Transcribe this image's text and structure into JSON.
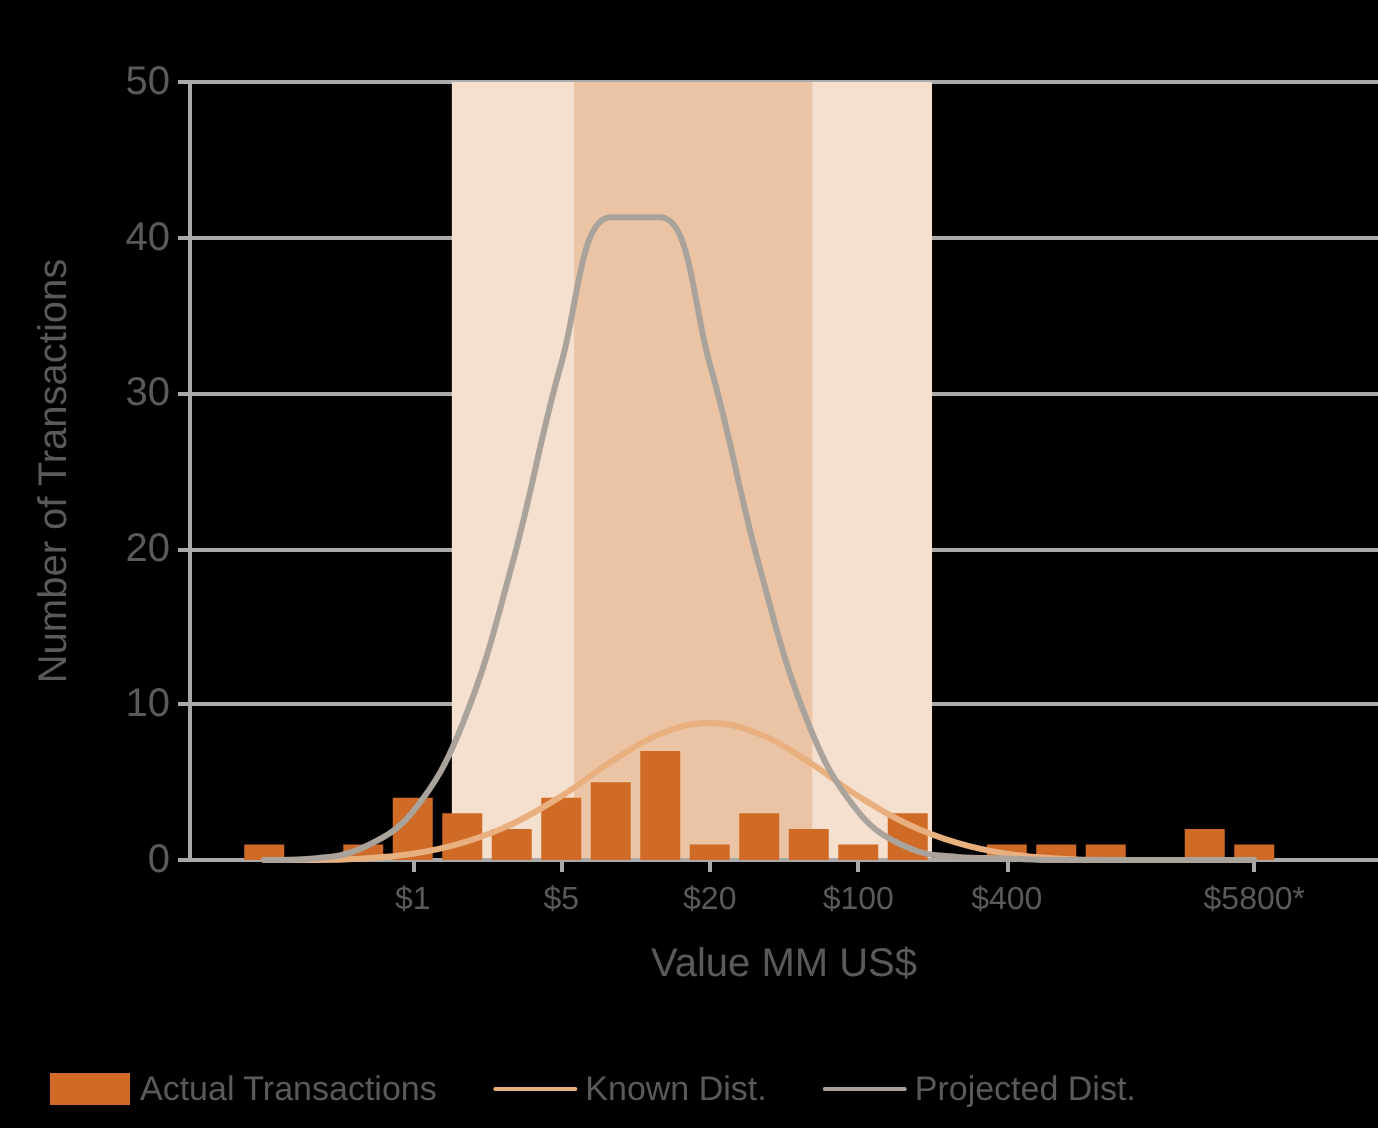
{
  "chart_data": {
    "type": "bar",
    "xlabel": "Value MM US$",
    "ylabel": "Number of Transactions",
    "categories": [
      null,
      null,
      null,
      null,
      "$1",
      null,
      null,
      "$5",
      null,
      null,
      "$20",
      null,
      null,
      "$100",
      null,
      null,
      "$400",
      null,
      null,
      null,
      null,
      "$5800*",
      null,
      null
    ],
    "ylim": [
      0,
      50
    ],
    "yticks": [
      0,
      10,
      20,
      30,
      40,
      50
    ],
    "grid": "y",
    "legend": "bottom",
    "marker": "none",
    "line_style": "solid",
    "series": [
      {
        "name": "Actual Transactions",
        "color": "#d06b27",
        "values": [
          null,
          1,
          null,
          1,
          4,
          3,
          2,
          4,
          5,
          7,
          1,
          3,
          2,
          1,
          3,
          null,
          1,
          1,
          1,
          null,
          2,
          1,
          null,
          null
        ]
      },
      {
        "name": "Known Dist.",
        "type": "line",
        "color": "#e9b07f",
        "values": [
          null,
          0,
          0,
          0.1,
          0.4,
          1.1,
          2.3,
          4.1,
          6.3,
          8.1,
          8.8,
          8.1,
          6.3,
          4.1,
          2.3,
          1.1,
          0.4,
          0.1,
          0,
          0,
          null,
          null,
          null,
          null
        ]
      },
      {
        "name": "Projected Dist.",
        "type": "line",
        "color": "#a9a39b",
        "values": [
          null,
          0,
          0.1,
          0.8,
          3.1,
          8.7,
          18.9,
          31.9,
          41.3,
          41.3,
          31.9,
          18.9,
          8.7,
          3.1,
          0.8,
          0.2,
          0.1,
          0,
          0,
          0,
          0,
          0,
          null,
          null
        ]
      }
    ]
  }
}
